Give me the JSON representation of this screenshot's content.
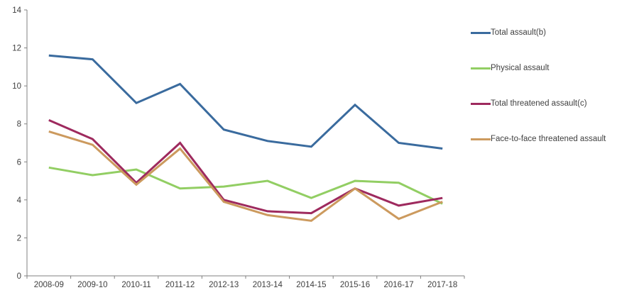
{
  "chart_data": {
    "type": "line",
    "categories": [
      "2008-09",
      "2009-10",
      "2010-11",
      "2011-12",
      "2012-13",
      "2013-14",
      "2014-15",
      "2015-16",
      "2016-17",
      "2017-18"
    ],
    "series": [
      {
        "name": "Total assault(b)",
        "color": "#3A6B9E",
        "values": [
          11.6,
          11.4,
          9.1,
          10.1,
          7.7,
          7.1,
          6.8,
          9.0,
          7.0,
          6.7
        ]
      },
      {
        "name": "Physical assault",
        "color": "#92CE63",
        "values": [
          5.7,
          5.3,
          5.6,
          4.6,
          4.7,
          5.0,
          4.1,
          5.0,
          4.9,
          3.8
        ]
      },
      {
        "name": "Total threatened assault(c)",
        "color": "#9E2A5E",
        "values": [
          8.2,
          7.2,
          4.9,
          7.0,
          4.0,
          3.4,
          3.3,
          4.6,
          3.7,
          4.1
        ]
      },
      {
        "name": "Face-to-face threatened assault",
        "color": "#CC9A5E",
        "values": [
          7.6,
          6.9,
          4.8,
          6.7,
          3.9,
          3.2,
          2.9,
          4.6,
          3.0,
          3.9
        ]
      }
    ],
    "title": "",
    "xlabel": "",
    "ylabel": "",
    "ylim": [
      0,
      14
    ],
    "ytick_step": 2,
    "grid": false,
    "legend_position": "right",
    "axis_color": "#808080",
    "label_color": "#404040"
  }
}
